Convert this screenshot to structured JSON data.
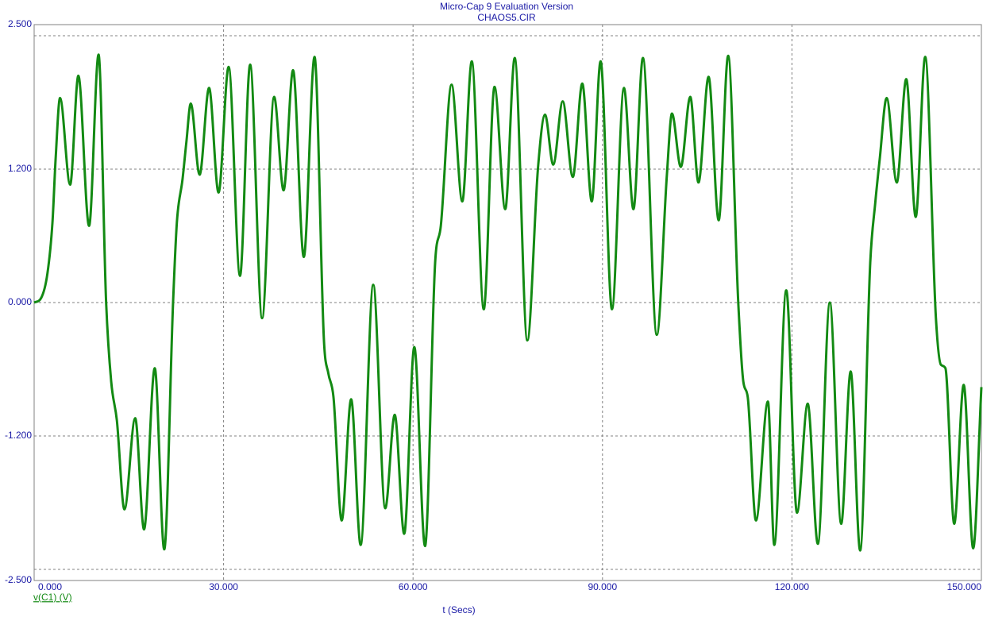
{
  "chart_data": {
    "type": "line",
    "title": "Micro-Cap 9 Evaluation Version",
    "subtitle": "CHAOS5.CIR",
    "x_label": "t (Secs)",
    "xlim": [
      0,
      150
    ],
    "ylim": [
      -2.5,
      2.5
    ],
    "xticks": [
      {
        "value": 0,
        "label": "0.000"
      },
      {
        "value": 30,
        "label": "30.000"
      },
      {
        "value": 60,
        "label": "60.000"
      },
      {
        "value": 90,
        "label": "90.000"
      },
      {
        "value": 120,
        "label": "120.000"
      },
      {
        "value": 150,
        "label": "150.000"
      }
    ],
    "yticks": [
      {
        "value": 2.5,
        "label": "2.500"
      },
      {
        "value": 1.2,
        "label": "1.200"
      },
      {
        "value": 0,
        "label": "0.000"
      },
      {
        "value": -1.2,
        "label": "-1.200"
      },
      {
        "value": -2.5,
        "label": "-2.500"
      }
    ],
    "ygrid": [
      2.4,
      1.2,
      0,
      -1.2,
      -2.4
    ],
    "grid": true,
    "x": [
      0,
      1.1,
      2.1,
      2.9,
      3.4,
      4.1,
      5.7,
      7.0,
      8.7,
      10.2,
      11.4,
      12.2,
      13.1,
      14.3,
      16.0,
      17.4,
      19.1,
      20.6,
      22.0,
      22.6,
      23.5,
      24.1,
      24.8,
      26.2,
      27.7,
      29.2,
      30.8,
      32.6,
      34.2,
      36.1,
      38.0,
      39.5,
      41.0,
      42.7,
      44.4,
      45.9,
      46.6,
      47.4,
      48.7,
      50.2,
      51.7,
      53.7,
      55.6,
      57.1,
      58.6,
      60.2,
      61.9,
      63.5,
      64.4,
      66.1,
      67.8,
      69.3,
      71.2,
      72.9,
      74.6,
      76.1,
      78.1,
      79.8,
      80.9,
      82.2,
      83.7,
      85.3,
      86.8,
      88.3,
      89.7,
      91.5,
      93.4,
      94.9,
      96.4,
      98.6,
      100.2,
      101.0,
      102.4,
      103.9,
      105.2,
      106.8,
      108.4,
      109.9,
      111.5,
      112.3,
      113.0,
      114.3,
      116.2,
      117.2,
      119.1,
      120.8,
      122.5,
      124.1,
      126.0,
      127.8,
      129.3,
      130.8,
      132.4,
      133.2,
      133.9,
      135.0,
      136.6,
      138.1,
      139.6,
      141.1,
      142.8,
      143.6,
      144.3,
      145.7,
      147.2,
      148.7,
      150
    ],
    "series": [
      {
        "name": "v(C1) (V)",
        "color": "#138a13",
        "values": [
          0,
          0.04,
          0.26,
          0.72,
          1.29,
          1.84,
          1.06,
          2.04,
          0.69,
          2.23,
          0.0,
          -0.71,
          -1.06,
          -1.86,
          -1.04,
          -2.04,
          -0.59,
          -2.22,
          0.0,
          0.72,
          1.11,
          1.44,
          1.79,
          1.15,
          1.93,
          0.99,
          2.12,
          0.24,
          2.14,
          -0.14,
          1.85,
          1.01,
          2.09,
          0.41,
          2.21,
          -0.35,
          -0.64,
          -0.85,
          -1.96,
          -0.87,
          -2.18,
          0.16,
          -1.85,
          -1.01,
          -2.08,
          -0.4,
          -2.19,
          0.36,
          0.69,
          1.96,
          0.91,
          2.17,
          -0.06,
          1.94,
          0.84,
          2.2,
          -0.34,
          1.22,
          1.69,
          1.24,
          1.81,
          1.13,
          1.97,
          0.91,
          2.17,
          -0.06,
          1.93,
          0.84,
          2.2,
          -0.29,
          1.15,
          1.7,
          1.22,
          1.85,
          1.08,
          2.03,
          0.74,
          2.22,
          0.0,
          -0.71,
          -0.85,
          -1.96,
          -0.89,
          -2.18,
          0.11,
          -1.89,
          -0.91,
          -2.17,
          0.0,
          -1.99,
          -0.62,
          -2.23,
          0.36,
          0.9,
          1.29,
          1.84,
          1.08,
          2.01,
          0.77,
          2.21,
          -0.14,
          -0.56,
          -0.59,
          -1.99,
          -0.74,
          -2.21,
          -0.76
        ]
      }
    ]
  }
}
